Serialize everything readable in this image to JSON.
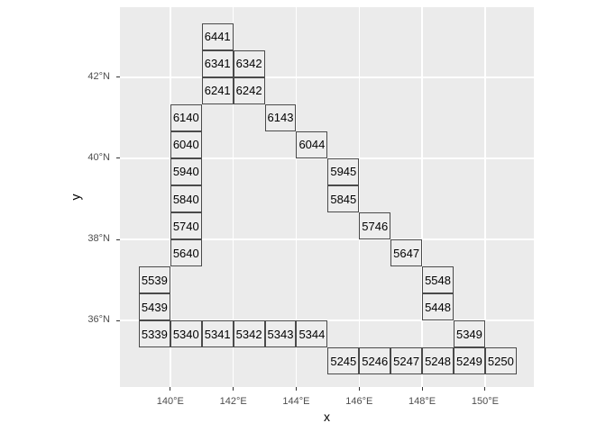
{
  "chart_data": {
    "type": "rect-grid",
    "title": "",
    "xlabel": "x",
    "ylabel": "y",
    "xlim": [
      138.4,
      151.55
    ],
    "ylim": [
      34.36,
      43.73
    ],
    "grid": "major gridlines only, white on grey panel",
    "legend_position": "none",
    "x_ticks": [
      {
        "value": 140,
        "label": "140°E"
      },
      {
        "value": 142,
        "label": "142°E"
      },
      {
        "value": 144,
        "label": "144°E"
      },
      {
        "value": 146,
        "label": "146°E"
      },
      {
        "value": 148,
        "label": "148°E"
      },
      {
        "value": 150,
        "label": "150°E"
      }
    ],
    "y_ticks": [
      {
        "value": 36,
        "label": "36°N"
      },
      {
        "value": 38,
        "label": "38°N"
      },
      {
        "value": 40,
        "label": "40°N"
      },
      {
        "value": 42,
        "label": "42°N"
      }
    ],
    "colors": {
      "figure_bg": "#FFFFFF",
      "panel_bg": "#EBEBEB",
      "grid_color": "#FFFFFF",
      "cell_fill": "#EDEDED",
      "cell_border": "#4A4A4A",
      "cell_text": "#000000",
      "tick_mark": "#333333",
      "tick_label": "#4D4D4D",
      "axis_title": "#000000"
    },
    "cells": [
      {
        "code": "6441",
        "lon": [
          141,
          142
        ],
        "lat": [
          42.6667,
          43.3333
        ]
      },
      {
        "code": "6341",
        "lon": [
          141,
          142
        ],
        "lat": [
          42.0,
          42.6667
        ]
      },
      {
        "code": "6342",
        "lon": [
          142,
          143
        ],
        "lat": [
          42.0,
          42.6667
        ]
      },
      {
        "code": "6241",
        "lon": [
          141,
          142
        ],
        "lat": [
          41.3333,
          42.0
        ]
      },
      {
        "code": "6242",
        "lon": [
          142,
          143
        ],
        "lat": [
          41.3333,
          42.0
        ]
      },
      {
        "code": "6140",
        "lon": [
          140,
          141
        ],
        "lat": [
          40.6667,
          41.3333
        ]
      },
      {
        "code": "6143",
        "lon": [
          143,
          144
        ],
        "lat": [
          40.6667,
          41.3333
        ]
      },
      {
        "code": "6040",
        "lon": [
          140,
          141
        ],
        "lat": [
          40.0,
          40.6667
        ]
      },
      {
        "code": "6044",
        "lon": [
          144,
          145
        ],
        "lat": [
          40.0,
          40.6667
        ]
      },
      {
        "code": "5940",
        "lon": [
          140,
          141
        ],
        "lat": [
          39.3333,
          40.0
        ]
      },
      {
        "code": "5945",
        "lon": [
          145,
          146
        ],
        "lat": [
          39.3333,
          40.0
        ]
      },
      {
        "code": "5840",
        "lon": [
          140,
          141
        ],
        "lat": [
          38.6667,
          39.3333
        ]
      },
      {
        "code": "5845",
        "lon": [
          145,
          146
        ],
        "lat": [
          38.6667,
          39.3333
        ]
      },
      {
        "code": "5740",
        "lon": [
          140,
          141
        ],
        "lat": [
          38.0,
          38.6667
        ]
      },
      {
        "code": "5746",
        "lon": [
          146,
          147
        ],
        "lat": [
          38.0,
          38.6667
        ]
      },
      {
        "code": "5640",
        "lon": [
          140,
          141
        ],
        "lat": [
          37.3333,
          38.0
        ]
      },
      {
        "code": "5647",
        "lon": [
          147,
          148
        ],
        "lat": [
          37.3333,
          38.0
        ]
      },
      {
        "code": "5539",
        "lon": [
          139,
          140
        ],
        "lat": [
          36.6667,
          37.3333
        ]
      },
      {
        "code": "5548",
        "lon": [
          148,
          149
        ],
        "lat": [
          36.6667,
          37.3333
        ]
      },
      {
        "code": "5439",
        "lon": [
          139,
          140
        ],
        "lat": [
          36.0,
          36.6667
        ]
      },
      {
        "code": "5448",
        "lon": [
          148,
          149
        ],
        "lat": [
          36.0,
          36.6667
        ]
      },
      {
        "code": "5339",
        "lon": [
          139,
          140
        ],
        "lat": [
          35.3333,
          36.0
        ]
      },
      {
        "code": "5340",
        "lon": [
          140,
          141
        ],
        "lat": [
          35.3333,
          36.0
        ]
      },
      {
        "code": "5341",
        "lon": [
          141,
          142
        ],
        "lat": [
          35.3333,
          36.0
        ]
      },
      {
        "code": "5342",
        "lon": [
          142,
          143
        ],
        "lat": [
          35.3333,
          36.0
        ]
      },
      {
        "code": "5343",
        "lon": [
          143,
          144
        ],
        "lat": [
          35.3333,
          36.0
        ]
      },
      {
        "code": "5344",
        "lon": [
          144,
          145
        ],
        "lat": [
          35.3333,
          36.0
        ]
      },
      {
        "code": "5349",
        "lon": [
          149,
          150
        ],
        "lat": [
          35.3333,
          36.0
        ]
      },
      {
        "code": "5245",
        "lon": [
          145,
          146
        ],
        "lat": [
          34.6667,
          35.3333
        ]
      },
      {
        "code": "5246",
        "lon": [
          146,
          147
        ],
        "lat": [
          34.6667,
          35.3333
        ]
      },
      {
        "code": "5247",
        "lon": [
          147,
          148
        ],
        "lat": [
          34.6667,
          35.3333
        ]
      },
      {
        "code": "5248",
        "lon": [
          148,
          149
        ],
        "lat": [
          34.6667,
          35.3333
        ]
      },
      {
        "code": "5249",
        "lon": [
          149,
          150
        ],
        "lat": [
          34.6667,
          35.3333
        ]
      },
      {
        "code": "5250",
        "lon": [
          150,
          151
        ],
        "lat": [
          34.6667,
          35.3333
        ]
      }
    ]
  }
}
